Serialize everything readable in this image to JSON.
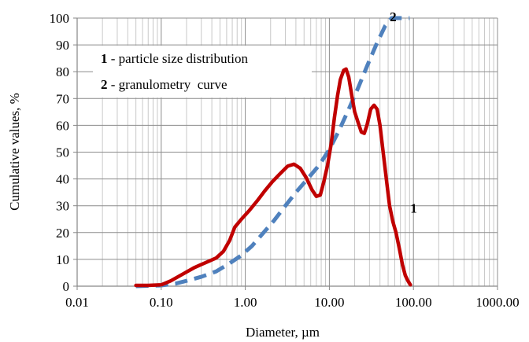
{
  "chart_data": {
    "type": "line",
    "xscale": "log",
    "xlim": [
      0.01,
      1000
    ],
    "ylim": [
      0,
      100
    ],
    "xlabel": "Diameter, µm",
    "ylabel": "Cumulative values, %",
    "x_ticks": [
      "0.01",
      "0.10",
      "1.00",
      "10.00",
      "100.00",
      "1000.00"
    ],
    "y_ticks": [
      "0",
      "10",
      "20",
      "30",
      "40",
      "50",
      "60",
      "70",
      "80",
      "90",
      "100"
    ],
    "grid": true,
    "legend": [
      {
        "num": "1",
        "text": " - particle size distribution"
      },
      {
        "num": "2",
        "text": " - granulometry  curve"
      }
    ],
    "series": [
      {
        "label": "1",
        "color": "#c00000",
        "style": "solid",
        "points": [
          [
            0.05,
            0.3
          ],
          [
            0.07,
            0.3
          ],
          [
            0.1,
            0.5
          ],
          [
            0.13,
            2
          ],
          [
            0.18,
            4.5
          ],
          [
            0.25,
            7
          ],
          [
            0.35,
            9
          ],
          [
            0.45,
            10.5
          ],
          [
            0.55,
            13
          ],
          [
            0.65,
            17
          ],
          [
            0.75,
            22
          ],
          [
            0.9,
            25
          ],
          [
            1.1,
            28
          ],
          [
            1.4,
            32
          ],
          [
            1.7,
            35.5
          ],
          [
            2.1,
            39
          ],
          [
            2.6,
            42
          ],
          [
            3.2,
            44.8
          ],
          [
            3.8,
            45.5
          ],
          [
            4.5,
            44
          ],
          [
            5.3,
            40.5
          ],
          [
            6.2,
            36
          ],
          [
            7.0,
            33.5
          ],
          [
            7.8,
            34
          ],
          [
            8.6,
            39
          ],
          [
            9.5,
            45
          ],
          [
            10.5,
            53
          ],
          [
            11.5,
            63
          ],
          [
            12.5,
            71
          ],
          [
            13.5,
            77
          ],
          [
            14.8,
            80.5
          ],
          [
            15.8,
            81
          ],
          [
            17,
            78
          ],
          [
            18.5,
            71
          ],
          [
            20,
            65
          ],
          [
            22,
            61
          ],
          [
            24,
            57.5
          ],
          [
            26,
            57
          ],
          [
            28,
            60
          ],
          [
            31,
            66
          ],
          [
            34,
            67.5
          ],
          [
            37,
            66
          ],
          [
            40,
            60
          ],
          [
            44,
            49
          ],
          [
            48,
            39
          ],
          [
            52,
            30
          ],
          [
            57,
            24
          ],
          [
            62,
            20
          ],
          [
            68,
            14
          ],
          [
            74,
            8
          ],
          [
            80,
            4
          ],
          [
            86,
            2
          ],
          [
            92,
            0.5
          ]
        ]
      },
      {
        "label": "2",
        "color": "#4f81bd",
        "style": "dashed",
        "points": [
          [
            0.05,
            0
          ],
          [
            0.1,
            0.3
          ],
          [
            0.15,
            1
          ],
          [
            0.2,
            2
          ],
          [
            0.3,
            3.5
          ],
          [
            0.45,
            5.5
          ],
          [
            0.65,
            8.5
          ],
          [
            0.9,
            11.5
          ],
          [
            1.2,
            15
          ],
          [
            1.6,
            19.5
          ],
          [
            2.2,
            24.5
          ],
          [
            3,
            30
          ],
          [
            4,
            35
          ],
          [
            5.5,
            40
          ],
          [
            7.5,
            45
          ],
          [
            10,
            51
          ],
          [
            13,
            58
          ],
          [
            17,
            66
          ],
          [
            22,
            74
          ],
          [
            28,
            82
          ],
          [
            36,
            90
          ],
          [
            46,
            97
          ],
          [
            55,
            100
          ],
          [
            90,
            100
          ]
        ]
      }
    ]
  }
}
